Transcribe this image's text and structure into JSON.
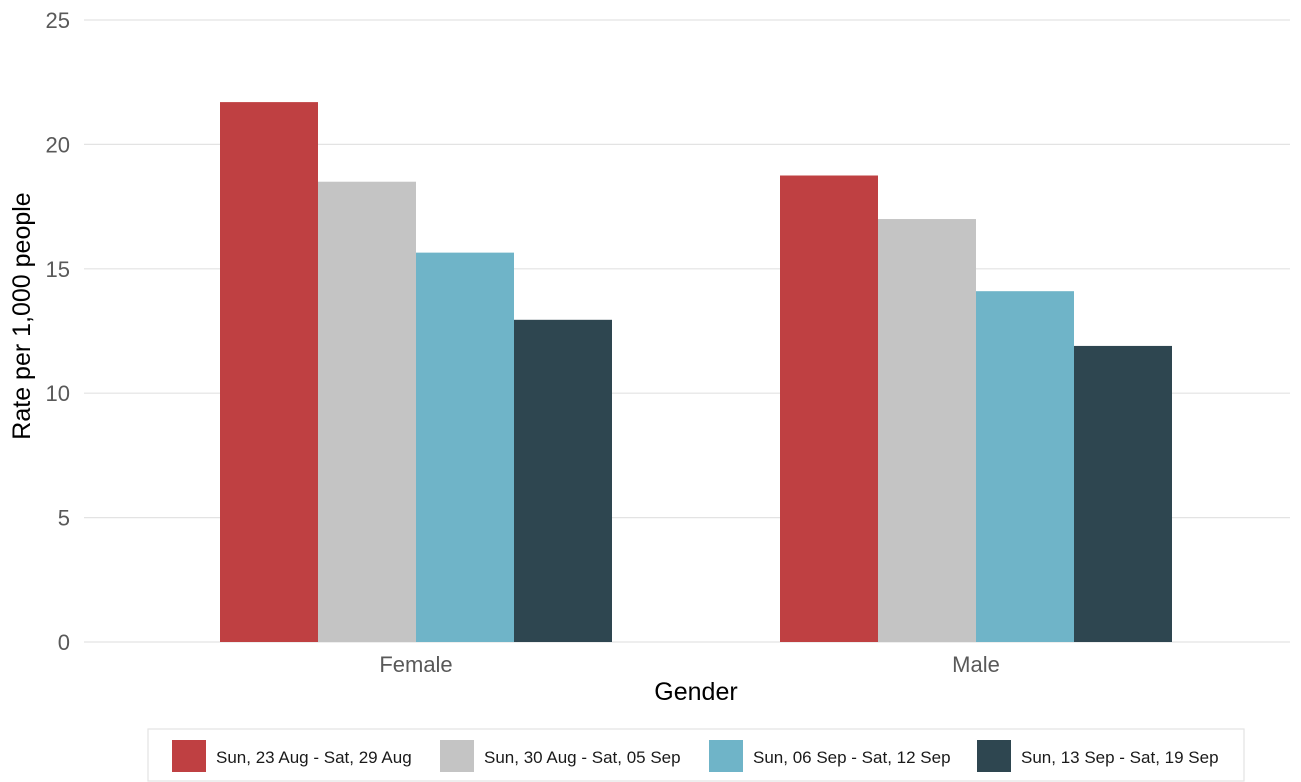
{
  "chart_data": {
    "type": "bar",
    "title": "",
    "xlabel": "Gender",
    "ylabel": "Rate per 1,000 people",
    "categories": [
      "Female",
      "Male"
    ],
    "ylim": [
      0,
      25
    ],
    "yticks": [
      0,
      5,
      10,
      15,
      20,
      25
    ],
    "grid": true,
    "legend_position": "bottom",
    "series": [
      {
        "name": "Sun, 23 Aug - Sat, 29 Aug",
        "color": "#bf4042",
        "values": [
          21.7,
          18.75
        ]
      },
      {
        "name": "Sun, 30 Aug - Sat, 05 Sep",
        "color": "#c4c4c4",
        "values": [
          18.5,
          17.0
        ]
      },
      {
        "name": "Sun, 06 Sep - Sat, 12 Sep",
        "color": "#6fb4c8",
        "values": [
          15.65,
          14.1
        ]
      },
      {
        "name": "Sun, 13 Sep - Sat, 19 Sep",
        "color": "#2e4650",
        "values": [
          12.95,
          11.9
        ]
      }
    ]
  }
}
